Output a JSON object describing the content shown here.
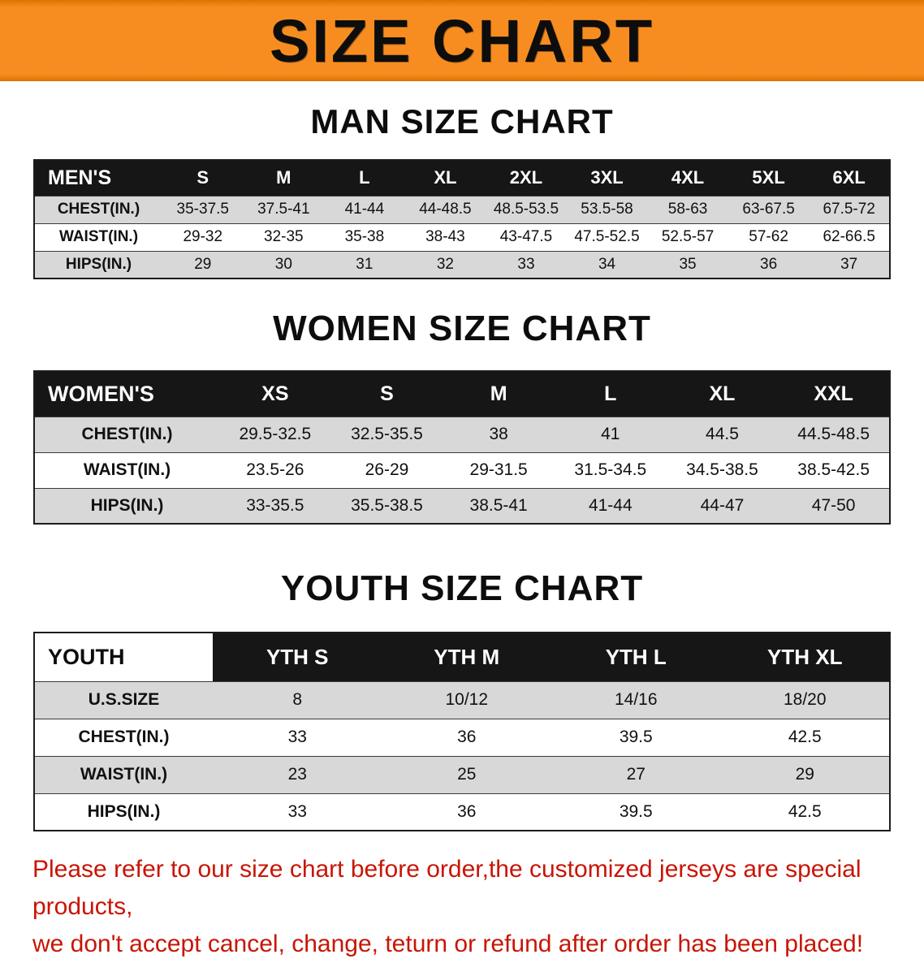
{
  "banner": {
    "title": "SIZE CHART"
  },
  "colors": {
    "banner_orange": "#f78d20",
    "table_header_black": "#161616",
    "row_stripe_gray": "#d8d8d8",
    "disclaimer_red": "#c81505"
  },
  "sections": [
    {
      "heading": "MAN SIZE CHART",
      "table": {
        "first_col_inverted": false,
        "header": [
          "MEN'S",
          "S",
          "M",
          "L",
          "XL",
          "2XL",
          "3XL",
          "4XL",
          "5XL",
          "6XL"
        ],
        "rows": [
          [
            "CHEST(IN.)",
            "35-37.5",
            "37.5-41",
            "41-44",
            "44-48.5",
            "48.5-53.5",
            "53.5-58",
            "58-63",
            "63-67.5",
            "67.5-72"
          ],
          [
            "WAIST(IN.)",
            "29-32",
            "32-35",
            "35-38",
            "38-43",
            "43-47.5",
            "47.5-52.5",
            "52.5-57",
            "57-62",
            "62-66.5"
          ],
          [
            "HIPS(IN.)",
            "29",
            "30",
            "31",
            "32",
            "33",
            "34",
            "35",
            "36",
            "37"
          ]
        ]
      }
    },
    {
      "heading": "WOMEN SIZE CHART",
      "table": {
        "first_col_inverted": false,
        "header": [
          "WOMEN'S",
          "XS",
          "S",
          "M",
          "L",
          "XL",
          "XXL"
        ],
        "rows": [
          [
            "CHEST(IN.)",
            "29.5-32.5",
            "32.5-35.5",
            "38",
            "41",
            "44.5",
            "44.5-48.5"
          ],
          [
            "WAIST(IN.)",
            "23.5-26",
            "26-29",
            "29-31.5",
            "31.5-34.5",
            "34.5-38.5",
            "38.5-42.5"
          ],
          [
            "HIPS(IN.)",
            "33-35.5",
            "35.5-38.5",
            "38.5-41",
            "41-44",
            "44-47",
            "47-50"
          ]
        ]
      }
    },
    {
      "heading": "YOUTH SIZE CHART",
      "table": {
        "first_col_inverted": true,
        "header": [
          "YOUTH",
          "YTH S",
          "YTH M",
          "YTH L",
          "YTH XL"
        ],
        "rows": [
          [
            "U.S.SIZE",
            "8",
            "10/12",
            "14/16",
            "18/20"
          ],
          [
            "CHEST(IN.)",
            "33",
            "36",
            "39.5",
            "42.5"
          ],
          [
            "WAIST(IN.)",
            "23",
            "25",
            "27",
            "29"
          ],
          [
            "HIPS(IN.)",
            "33",
            "36",
            "39.5",
            "42.5"
          ]
        ]
      }
    }
  ],
  "disclaimer": {
    "line1": "Please refer to our size chart before order,the customized jerseys are special products,",
    "line2": "we don't accept cancel, change, teturn or refund after order has been placed!"
  }
}
